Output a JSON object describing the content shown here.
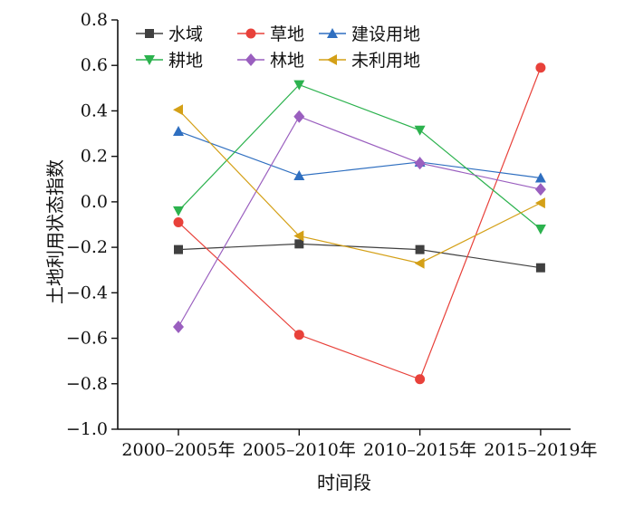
{
  "chart_data": {
    "type": "line",
    "title": "",
    "xlabel": "时间段",
    "ylabel": "土地利用状态指数",
    "categories": [
      "2000–2005年",
      "2005–2010年",
      "2010–2015年",
      "2015–2019年"
    ],
    "ylim": [
      -1.0,
      0.8
    ],
    "yticks": [
      {
        "value": 0.8,
        "label": "0.8"
      },
      {
        "value": 0.6,
        "label": "0.6"
      },
      {
        "value": 0.4,
        "label": "0.4"
      },
      {
        "value": 0.2,
        "label": "0.2"
      },
      {
        "value": 0.0,
        "label": "0.0"
      },
      {
        "value": -0.2,
        "label": "−0.2"
      },
      {
        "value": -0.4,
        "label": "−0.4"
      },
      {
        "value": -0.6,
        "label": "−0.6"
      },
      {
        "value": -0.8,
        "label": "−0.8"
      },
      {
        "value": -1.0,
        "label": "−1.0"
      }
    ],
    "grid": false,
    "legend_position": "top",
    "series": [
      {
        "name": "水域",
        "marker": "square",
        "color": "#404040",
        "values": [
          -0.21,
          -0.185,
          -0.21,
          -0.29
        ]
      },
      {
        "name": "草地",
        "marker": "circle",
        "color": "#e8413a",
        "values": [
          -0.09,
          -0.585,
          -0.78,
          0.59
        ]
      },
      {
        "name": "建设用地",
        "marker": "triangle-up",
        "color": "#2f6fc0",
        "values": [
          0.31,
          0.115,
          0.175,
          0.105
        ]
      },
      {
        "name": "耕地",
        "marker": "triangle-down",
        "color": "#2cb24e",
        "values": [
          -0.04,
          0.515,
          0.315,
          -0.12
        ]
      },
      {
        "name": "林地",
        "marker": "diamond",
        "color": "#9a5fbf",
        "values": [
          -0.55,
          0.375,
          0.17,
          0.055
        ]
      },
      {
        "name": "未利用地",
        "marker": "triangle-left",
        "color": "#d4a017",
        "values": [
          0.405,
          -0.15,
          -0.27,
          -0.005
        ]
      }
    ]
  }
}
